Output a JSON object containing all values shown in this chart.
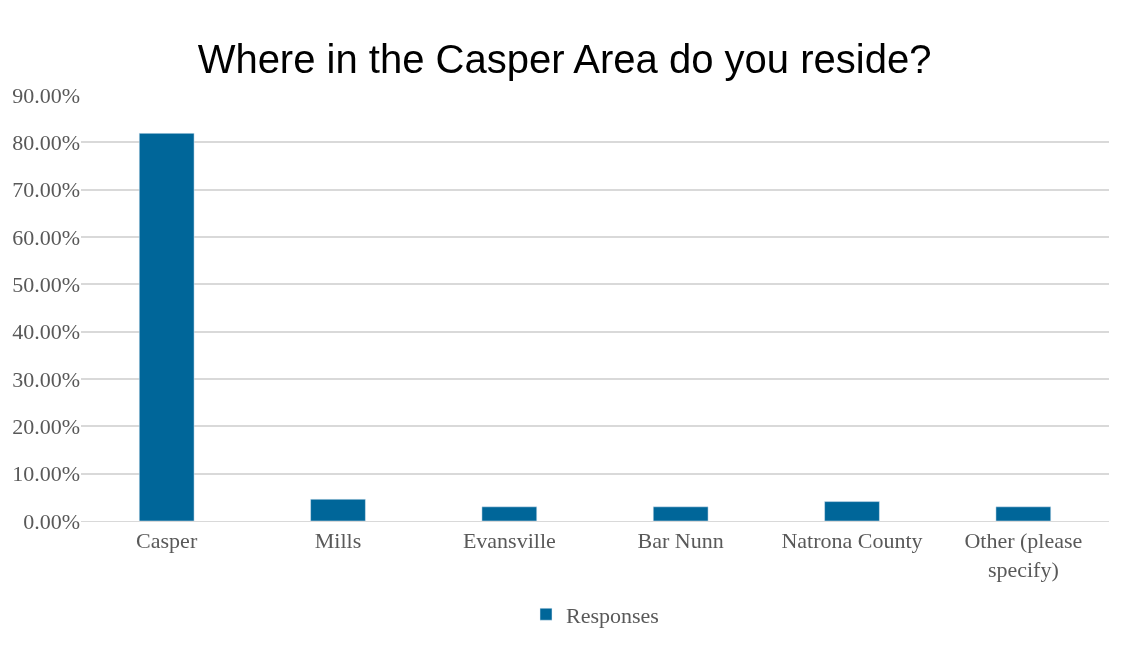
{
  "chart_data": {
    "type": "bar",
    "title": "Where in the Casper Area do you reside?",
    "categories": [
      "Casper",
      "Mills",
      "Evansville",
      "Bar Nunn",
      "Natrona County",
      "Other (please specify)"
    ],
    "series": [
      {
        "name": "Responses",
        "color": "#006699",
        "values": [
          81.9,
          4.6,
          3.0,
          3.0,
          4.1,
          3.0
        ]
      }
    ],
    "ylim": [
      0,
      90
    ],
    "yticks": [
      {
        "value": 0,
        "label": "0.00%"
      },
      {
        "value": 10,
        "label": "10.00%"
      },
      {
        "value": 20,
        "label": "20.00%"
      },
      {
        "value": 30,
        "label": "30.00%"
      },
      {
        "value": 40,
        "label": "40.00%"
      },
      {
        "value": 50,
        "label": "50.00%"
      },
      {
        "value": 60,
        "label": "60.00%"
      },
      {
        "value": 70,
        "label": "70.00%"
      },
      {
        "value": 80,
        "label": "80.00%"
      },
      {
        "value": 90,
        "label": "90.00%"
      }
    ],
    "grid": "y",
    "legend": "bottom"
  }
}
